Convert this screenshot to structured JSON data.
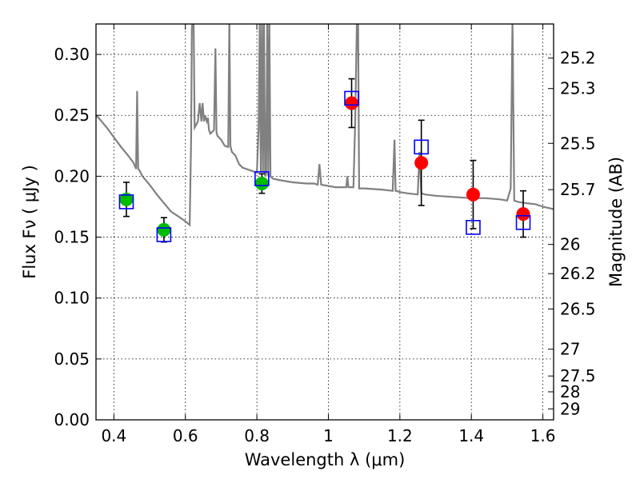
{
  "chart_data": {
    "type": "scatter",
    "title": "",
    "xlabel": "Wavelength  λ (μm)",
    "ylabel": "Flux  Fν  ( μJy )",
    "y2label": "Magnitude (AB)",
    "xlim": [
      0.35,
      1.63
    ],
    "ylim": [
      0.0,
      0.325
    ],
    "grid": true,
    "x_ticks": [
      0.4,
      0.6,
      0.8,
      1.0,
      1.2,
      1.4,
      1.6
    ],
    "x_tick_labels": [
      "0.4",
      "0.6",
      "0.8",
      "1",
      "1.2",
      "1.4",
      "1.6"
    ],
    "y_ticks": [
      0.0,
      0.05,
      0.1,
      0.15,
      0.2,
      0.25,
      0.3
    ],
    "y_tick_labels": [
      "0.00",
      "0.05",
      "0.10",
      "0.15",
      "0.20",
      "0.25",
      "0.30"
    ],
    "y2_ticks": [
      {
        "label": "25.2",
        "flux": 0.297
      },
      {
        "label": "25.3",
        "flux": 0.272
      },
      {
        "label": "25.5",
        "flux": 0.227
      },
      {
        "label": "25.7",
        "flux": 0.189
      },
      {
        "label": "26",
        "flux": 0.144
      },
      {
        "label": "26.2",
        "flux": 0.12
      },
      {
        "label": "26.5",
        "flux": 0.091
      },
      {
        "label": "27",
        "flux": 0.058
      },
      {
        "label": "27.5",
        "flux": 0.036
      },
      {
        "label": "28",
        "flux": 0.023
      },
      {
        "label": "29",
        "flux": 0.009
      }
    ],
    "series": [
      {
        "marker": "circle",
        "color": "#00bb00",
        "points": [
          {
            "x": 0.435,
            "y": 0.181,
            "yerr": 0.014
          },
          {
            "x": 0.54,
            "y": 0.156,
            "yerr": 0.01
          },
          {
            "x": 0.814,
            "y": 0.194,
            "yerr": 0.008
          }
        ]
      },
      {
        "marker": "circle",
        "color": "#ff0000",
        "points": [
          {
            "x": 1.065,
            "y": 0.26,
            "yerr": 0.02
          },
          {
            "x": 1.26,
            "y": 0.211,
            "yerr": 0.035
          },
          {
            "x": 1.405,
            "y": 0.185,
            "yerr": 0.028
          },
          {
            "x": 1.545,
            "y": 0.169,
            "yerr": 0.019
          }
        ]
      },
      {
        "marker": "open-square",
        "color": "#0000ff",
        "points": [
          {
            "x": 0.435,
            "y": 0.179
          },
          {
            "x": 0.54,
            "y": 0.152
          },
          {
            "x": 0.814,
            "y": 0.198
          },
          {
            "x": 1.065,
            "y": 0.264
          },
          {
            "x": 1.26,
            "y": 0.224
          },
          {
            "x": 1.405,
            "y": 0.158
          },
          {
            "x": 1.545,
            "y": 0.162
          }
        ]
      }
    ],
    "model_spectrum": {
      "type": "line",
      "color": "#808080",
      "x": [
        0.35,
        0.36,
        0.38,
        0.4,
        0.42,
        0.44,
        0.455,
        0.462,
        0.465,
        0.468,
        0.471,
        0.48,
        0.5,
        0.52,
        0.54,
        0.56,
        0.58,
        0.6,
        0.612,
        0.616,
        0.618,
        0.62,
        0.623,
        0.626,
        0.63,
        0.635,
        0.64,
        0.645,
        0.648,
        0.652,
        0.655,
        0.66,
        0.663,
        0.666,
        0.67,
        0.68,
        0.684,
        0.687,
        0.69,
        0.7,
        0.71,
        0.72,
        0.723,
        0.726,
        0.73,
        0.74,
        0.75,
        0.76,
        0.78,
        0.8,
        0.805,
        0.808,
        0.811,
        0.814,
        0.817,
        0.82,
        0.823,
        0.826,
        0.829,
        0.832,
        0.835,
        0.838,
        0.841,
        0.845,
        0.86,
        0.88,
        0.9,
        0.94,
        0.96,
        0.97,
        0.975,
        0.98,
        1.0,
        1.02,
        1.05,
        1.053,
        1.056,
        1.06,
        1.07,
        1.075,
        1.08,
        1.083,
        1.086,
        1.1,
        1.15,
        1.18,
        1.185,
        1.188,
        1.191,
        1.2,
        1.22,
        1.25,
        1.255,
        1.26,
        1.27,
        1.3,
        1.35,
        1.4,
        1.44,
        1.48,
        1.5,
        1.51,
        1.515,
        1.52,
        1.53,
        1.55,
        1.58,
        1.6,
        1.63
      ],
      "y": [
        0.25,
        0.247,
        0.24,
        0.232,
        0.224,
        0.217,
        0.211,
        0.206,
        0.27,
        0.206,
        0.205,
        0.2,
        0.193,
        0.185,
        0.178,
        0.171,
        0.167,
        0.163,
        0.16,
        0.23,
        0.32,
        0.33,
        0.33,
        0.24,
        0.242,
        0.245,
        0.26,
        0.245,
        0.26,
        0.245,
        0.25,
        0.245,
        0.248,
        0.238,
        0.235,
        0.238,
        0.305,
        0.236,
        0.233,
        0.23,
        0.225,
        0.224,
        0.33,
        0.225,
        0.22,
        0.217,
        0.21,
        0.207,
        0.205,
        0.203,
        0.24,
        0.33,
        0.203,
        0.33,
        0.203,
        0.33,
        0.2,
        0.202,
        0.33,
        0.2,
        0.33,
        0.2,
        0.199,
        0.198,
        0.197,
        0.196,
        0.195,
        0.194,
        0.194,
        0.193,
        0.21,
        0.193,
        0.192,
        0.191,
        0.191,
        0.2,
        0.191,
        0.191,
        0.191,
        0.245,
        0.33,
        0.33,
        0.19,
        0.19,
        0.189,
        0.188,
        0.23,
        0.188,
        0.188,
        0.187,
        0.186,
        0.185,
        0.22,
        0.186,
        0.185,
        0.184,
        0.183,
        0.182,
        0.182,
        0.181,
        0.18,
        0.19,
        0.33,
        0.18,
        0.179,
        0.178,
        0.177,
        0.175,
        0.173
      ]
    }
  }
}
